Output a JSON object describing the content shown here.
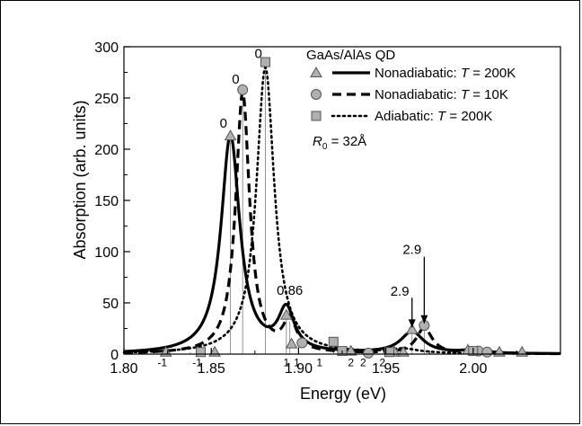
{
  "chart_data": {
    "type": "line",
    "xlabel": "Energy (eV)",
    "ylabel": "Absorption (arb. units)",
    "xlim": [
      1.8,
      2.05
    ],
    "ylim": [
      0,
      300
    ],
    "xticks": [
      "1.80",
      "1.85",
      "1.90",
      "1.95",
      "2.00"
    ],
    "xtick_values": [
      1.8,
      1.85,
      1.9,
      1.95,
      2.0
    ],
    "yticks": [
      "0",
      "50",
      "100",
      "150",
      "200",
      "250",
      "300"
    ],
    "ytick_values": [
      0,
      50,
      100,
      150,
      200,
      250,
      300
    ],
    "legend": {
      "title": "GaAs/AlAs QD",
      "placement": "top-right",
      "entries": [
        {
          "prefix": "Nonadiabatic: ",
          "var": "T",
          "suffix": " = 200K",
          "line": "solid",
          "marker": "triangle"
        },
        {
          "prefix": "Nonadiabatic: ",
          "var": "T",
          "suffix": " = 10K",
          "line": "dashed",
          "marker": "circle"
        },
        {
          "prefix": "Adiabatic: ",
          "var": "T",
          "suffix": " = 200K",
          "line": "dotted",
          "marker": "square"
        }
      ],
      "param_var": "R",
      "param_sub": "0",
      "param_rest": " = 32Å"
    },
    "series": [
      {
        "name": "Nonadiabatic: T = 200K",
        "style": "solid",
        "peaks": [
          {
            "x": 1.861,
            "y": 213,
            "gamma": 0.0065
          },
          {
            "x": 1.893,
            "y": 40,
            "gamma": 0.0055
          },
          {
            "x": 1.965,
            "y": 21,
            "gamma": 0.008
          },
          {
            "x": 2.0,
            "y": 3,
            "gamma": 0.008
          }
        ]
      },
      {
        "name": "Nonadiabatic: T = 10K",
        "style": "dashed",
        "peaks": [
          {
            "x": 1.868,
            "y": 255,
            "gamma": 0.0048
          },
          {
            "x": 1.895,
            "y": 30,
            "gamma": 0.0045
          },
          {
            "x": 1.972,
            "y": 25,
            "gamma": 0.0055
          },
          {
            "x": 2.005,
            "y": 3,
            "gamma": 0.006
          }
        ]
      },
      {
        "name": "Adiabatic: T = 200K",
        "style": "dotted",
        "peaks": [
          {
            "x": 1.881,
            "y": 280,
            "gamma": 0.0062
          },
          {
            "x": 1.96,
            "y": 4,
            "gamma": 0.01
          }
        ]
      }
    ],
    "stick_lines": [
      {
        "x": 1.861,
        "y": 213
      },
      {
        "x": 1.868,
        "y": 258
      },
      {
        "x": 1.881,
        "y": 285
      },
      {
        "x": 1.893,
        "y": 38
      },
      {
        "x": 1.895,
        "y": 32
      },
      {
        "x": 1.965,
        "y": 24
      },
      {
        "x": 1.972,
        "y": 28
      },
      {
        "x": 1.838,
        "y": 2
      },
      {
        "x": 1.845,
        "y": 2
      },
      {
        "x": 1.852,
        "y": 2
      },
      {
        "x": 1.9,
        "y": 10
      },
      {
        "x": 1.92,
        "y": 12
      },
      {
        "x": 1.93,
        "y": 3
      },
      {
        "x": 1.94,
        "y": 2
      },
      {
        "x": 1.955,
        "y": 2
      },
      {
        "x": 1.96,
        "y": 2
      },
      {
        "x": 1.997,
        "y": 4
      },
      {
        "x": 2.003,
        "y": 3
      },
      {
        "x": 2.008,
        "y": 2
      },
      {
        "x": 2.015,
        "y": 2
      },
      {
        "x": 2.028,
        "y": 2
      }
    ],
    "markers": [
      {
        "x": 1.824,
        "y": 2,
        "shape": "triangle"
      },
      {
        "x": 1.852,
        "y": 2,
        "shape": "triangle"
      },
      {
        "x": 1.861,
        "y": 213,
        "shape": "triangle"
      },
      {
        "x": 1.893,
        "y": 38,
        "shape": "triangle"
      },
      {
        "x": 1.896,
        "y": 10,
        "shape": "triangle"
      },
      {
        "x": 1.93,
        "y": 3,
        "shape": "triangle"
      },
      {
        "x": 1.955,
        "y": 2,
        "shape": "triangle"
      },
      {
        "x": 1.96,
        "y": 2,
        "shape": "triangle"
      },
      {
        "x": 1.965,
        "y": 24,
        "shape": "triangle"
      },
      {
        "x": 1.997,
        "y": 4,
        "shape": "triangle"
      },
      {
        "x": 2.015,
        "y": 2,
        "shape": "triangle"
      },
      {
        "x": 2.028,
        "y": 2,
        "shape": "triangle"
      },
      {
        "x": 1.868,
        "y": 258,
        "shape": "circle"
      },
      {
        "x": 1.902,
        "y": 11,
        "shape": "circle"
      },
      {
        "x": 1.94,
        "y": 1,
        "shape": "circle"
      },
      {
        "x": 1.972,
        "y": 28,
        "shape": "circle"
      },
      {
        "x": 2.003,
        "y": 3,
        "shape": "circle"
      },
      {
        "x": 2.008,
        "y": 2,
        "shape": "circle"
      },
      {
        "x": 1.844,
        "y": 2,
        "shape": "square"
      },
      {
        "x": 1.881,
        "y": 285,
        "shape": "square"
      },
      {
        "x": 1.92,
        "y": 12,
        "shape": "square"
      },
      {
        "x": 1.925,
        "y": 3,
        "shape": "square"
      },
      {
        "x": 1.952,
        "y": 2,
        "shape": "square"
      },
      {
        "x": 2.0,
        "y": 3,
        "shape": "square"
      }
    ],
    "annotations": [
      {
        "text": "0",
        "x": 1.857,
        "y": 221
      },
      {
        "text": "0",
        "x": 1.864,
        "y": 264
      },
      {
        "text": "0",
        "x": 1.877,
        "y": 289
      },
      {
        "text": "0.86",
        "x": 1.895,
        "y": 58
      },
      {
        "text": "2.9",
        "x": 1.958,
        "y": 57
      },
      {
        "text": "2.9",
        "x": 1.965,
        "y": 98
      }
    ],
    "small_annotations": [
      {
        "text": "-1",
        "x": 1.822,
        "y": -12
      },
      {
        "text": "-1",
        "x": 1.842,
        "y": -12
      },
      {
        "text": "1",
        "x": 1.893,
        "y": -12
      },
      {
        "text": "1",
        "x": 1.899,
        "y": -12
      },
      {
        "text": "1",
        "x": 1.912,
        "y": -12
      },
      {
        "text": "2",
        "x": 1.93,
        "y": -12
      },
      {
        "text": "2",
        "x": 1.937,
        "y": -12
      },
      {
        "text": "2",
        "x": 1.948,
        "y": -12
      }
    ],
    "arrows": [
      {
        "x": 1.965,
        "y_from": 55,
        "y_to": 26
      },
      {
        "x": 1.972,
        "y_from": 95,
        "y_to": 30
      }
    ]
  }
}
